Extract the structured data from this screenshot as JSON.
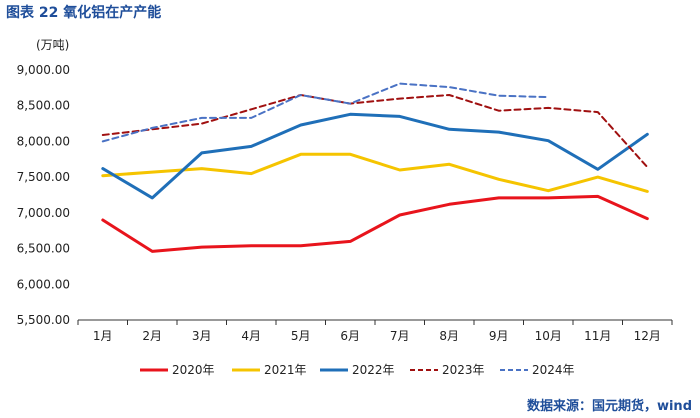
{
  "header": {
    "title": "图表 22 氧化铝在产产能",
    "unit": "(万吨)"
  },
  "footer": {
    "source": "数据来源：国元期货，wind"
  },
  "chart_data": {
    "type": "line",
    "title": "图表 22 氧化铝在产产能",
    "ylabel": "(万吨)",
    "xlabel": "",
    "categories": [
      "1月",
      "2月",
      "3月",
      "4月",
      "5月",
      "6月",
      "7月",
      "8月",
      "9月",
      "10月",
      "11月",
      "12月"
    ],
    "ylim": [
      5500,
      9000
    ],
    "yticks": [
      5500,
      6000,
      6500,
      7000,
      7500,
      8000,
      8500,
      9000
    ],
    "ytick_labels": [
      "5,500.00",
      "6,000.00",
      "6,500.00",
      "7,000.00",
      "7,500.00",
      "8,000.00",
      "8,500.00",
      "9,000.00"
    ],
    "grid": false,
    "legend_position": "bottom",
    "series": [
      {
        "name": "2020年",
        "color": "#e8141c",
        "dash": "solid",
        "values": [
          6900,
          6460,
          6520,
          6540,
          6540,
          6600,
          6970,
          7120,
          7210,
          7210,
          7230,
          6920
        ]
      },
      {
        "name": "2021年",
        "color": "#f5c400",
        "dash": "solid",
        "values": [
          7520,
          7570,
          7620,
          7550,
          7820,
          7820,
          7600,
          7680,
          7470,
          7310,
          7500,
          7300
        ]
      },
      {
        "name": "2022年",
        "color": "#1f6fb8",
        "dash": "solid",
        "values": [
          7620,
          7210,
          7840,
          7930,
          8230,
          8380,
          8350,
          8170,
          8130,
          8010,
          7610,
          8100
        ]
      },
      {
        "name": "2023年",
        "color": "#a01010",
        "dash": "dash",
        "values": [
          8090,
          8170,
          8250,
          8450,
          8650,
          8530,
          8600,
          8650,
          8430,
          8470,
          8410,
          7640
        ]
      },
      {
        "name": "2024年",
        "color": "#4a72c4",
        "dash": "dash",
        "values": [
          8000,
          8190,
          8330,
          8330,
          8650,
          8530,
          8810,
          8760,
          8640,
          8620,
          null,
          null
        ]
      }
    ]
  }
}
